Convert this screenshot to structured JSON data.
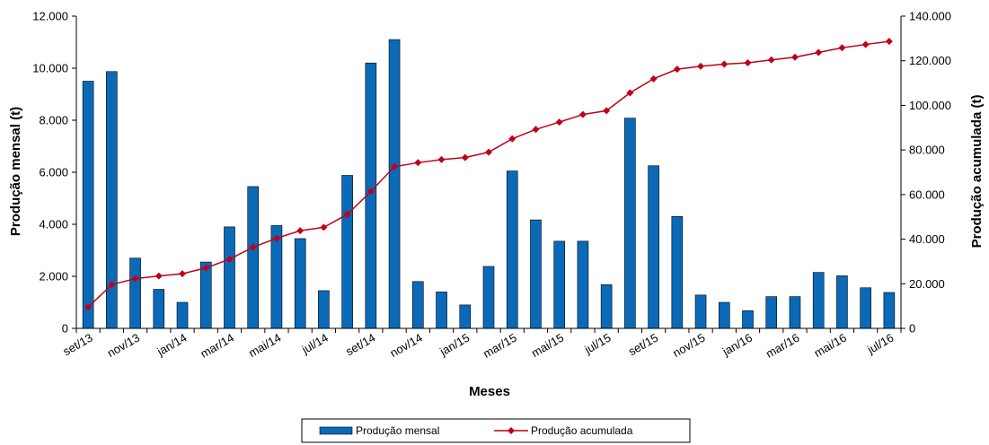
{
  "chart_data": {
    "type": "bar+line",
    "title": "",
    "xlabel": "Meses",
    "ylabel": "Produção mensal (t)",
    "y2label": "Produção acumulada (t)",
    "ylim": [
      0,
      12000
    ],
    "y2lim": [
      0,
      140000
    ],
    "yticks": [
      "0",
      "2.000",
      "4.000",
      "6.000",
      "8.000",
      "10.000",
      "12.000"
    ],
    "y2ticks": [
      "0",
      "20.000",
      "40.000",
      "60.000",
      "80.000",
      "100.000",
      "120.000",
      "140.000"
    ],
    "categories": [
      "set/13",
      "out/13",
      "nov/13",
      "dez/13",
      "jan/14",
      "fev/14",
      "mar/14",
      "abr/14",
      "mai/14",
      "jun/14",
      "jul/14",
      "ago/14",
      "set/14",
      "out/14",
      "nov/14",
      "dez/14",
      "jan/15",
      "fev/15",
      "mar/15",
      "abr/15",
      "mai/15",
      "jun/15",
      "jul/15",
      "ago/15",
      "set/15",
      "out/15",
      "nov/15",
      "dez/15",
      "jan/16",
      "fev/16",
      "mar/16",
      "abr/16",
      "mai/16",
      "jun/16",
      "jul/16"
    ],
    "xtick_labels": [
      "set/13",
      "nov/13",
      "jan/14",
      "mar/14",
      "mai/14",
      "jul/14",
      "set/14",
      "nov/14",
      "jan/15",
      "mar/15",
      "mai/15",
      "jul/15",
      "set/15",
      "nov/15",
      "jan/16",
      "mar/16",
      "mai/16",
      "jul/16"
    ],
    "grid": false,
    "legend_position": "bottom",
    "series": [
      {
        "name": "Produção mensal",
        "type": "bar",
        "axis": "left",
        "color": "#0a6ab8",
        "values": [
          9500,
          9870,
          2700,
          1500,
          1000,
          2550,
          3900,
          5450,
          3950,
          3450,
          1450,
          5880,
          10200,
          11100,
          1800,
          1400,
          900,
          2380,
          6050,
          4170,
          3350,
          3350,
          1680,
          8080,
          6250,
          4300,
          1280,
          1000,
          680,
          1220,
          1220,
          2150,
          2020,
          1560,
          1380
        ]
      },
      {
        "name": "Produção acumulada",
        "type": "line",
        "axis": "right",
        "color": "#c0001a",
        "values": [
          9500,
          19600,
          22300,
          23500,
          24500,
          27100,
          31000,
          36400,
          40400,
          43800,
          45300,
          51100,
          61400,
          72500,
          74300,
          75700,
          76600,
          79000,
          85000,
          89200,
          92500,
          95900,
          97600,
          105600,
          111900,
          116200,
          117500,
          118500,
          119100,
          120400,
          121600,
          123700,
          125800,
          127300,
          128700
        ]
      }
    ]
  }
}
